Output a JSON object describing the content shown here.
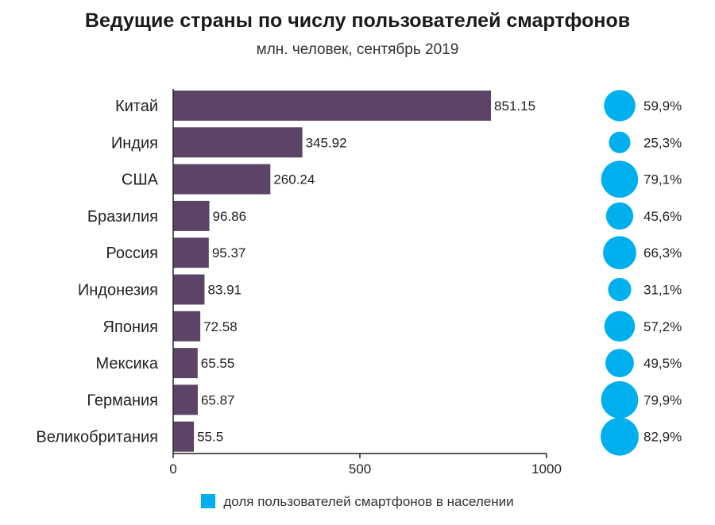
{
  "colors": {
    "bar": "#5c4466",
    "bubble": "#00b0ee",
    "axis": "#222222"
  },
  "chart_data": {
    "type": "bar",
    "orientation": "horizontal",
    "title": "Ведущие страны по числу пользователей смартфонов",
    "subtitle": "млн. человек, сентябрь 2019",
    "categories": [
      "Китай",
      "Индия",
      "США",
      "Бразилия",
      "Россия",
      "Индонезия",
      "Япония",
      "Мексика",
      "Германия",
      "Великобритания"
    ],
    "values": [
      851.15,
      345.92,
      260.24,
      96.86,
      95.37,
      83.91,
      72.58,
      65.55,
      65.87,
      55.5
    ],
    "value_labels": [
      "851.15",
      "345.92",
      "260.24",
      "96.86",
      "95.37",
      "83.91",
      "72.58",
      "65.55",
      "65.87",
      "55.5"
    ],
    "share_values": [
      59.9,
      25.3,
      79.1,
      45.6,
      66.3,
      31.1,
      57.2,
      49.5,
      79.9,
      82.9
    ],
    "share_labels": [
      "59,9%",
      "25,3%",
      "79,1%",
      "45,6%",
      "66,3%",
      "31,1%",
      "57,2%",
      "49,5%",
      "79,9%",
      "82,9%"
    ],
    "xlim": [
      0,
      1000
    ],
    "x_ticks": [
      0,
      500,
      1000
    ],
    "x_tick_labels": [
      "0",
      "500",
      "1000"
    ],
    "legend": {
      "label": "доля пользователей смартфонов в населении",
      "position": "bottom"
    }
  }
}
